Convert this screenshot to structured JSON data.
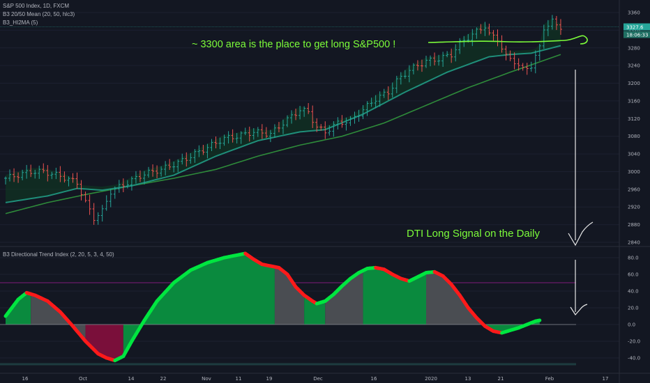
{
  "header": {
    "symbol_line": "S&P 500 Index, 1D, FXCM",
    "indicator_1": "B3 20/50 Mean (20, 50, hlc3)",
    "indicator_2": "B3_HI2MA (5)",
    "oscillator_title": "B3 Directional Trend Index (2, 20, 5, 3, 4, 50)"
  },
  "annotations": {
    "top_note": "~ 3300 area is the place to get long S&P500 !",
    "bottom_note": "DTI Long Signal on the Daily"
  },
  "price_labels": {
    "last_price": "3327.6",
    "countdown": "18:06:33"
  },
  "colors": {
    "background": "#131722",
    "bull_candle": "#26a69a",
    "bear_candle": "#ef5350",
    "mean_fast": "#1f8f7a",
    "mean_slow": "#2e8b3a",
    "annotation": "#7CFC3A",
    "dti_up": "#00e640",
    "dti_down": "#ff1a1a",
    "fill_green": "#0a8a3e",
    "fill_gray": "#4a4d52",
    "fill_maroon": "#7a0f3a",
    "upper_level": "#6a1b6a",
    "arrow": "#e8e8e8"
  },
  "chart_data": [
    {
      "type": "candlestick",
      "title": "S&P 500 Index, 1D, FXCM",
      "y_ticks": [
        3360,
        3320,
        3280,
        3240,
        3200,
        3160,
        3120,
        3080,
        3040,
        3000,
        2960,
        2920,
        2880,
        2840
      ],
      "x_tick_labels": [
        "16",
        "Oct",
        "14",
        "22",
        "Nov",
        "11",
        "19",
        "Dec",
        "16",
        "2020",
        "13",
        "21",
        "Feb",
        "17"
      ],
      "ylim": [
        2825,
        3375
      ],
      "close_path": [
        [
          0,
          2985
        ],
        [
          6,
          3000
        ],
        [
          9,
          3000
        ],
        [
          13,
          2990
        ],
        [
          17,
          2975
        ],
        [
          19,
          2930
        ],
        [
          21,
          2895
        ],
        [
          23,
          2910
        ],
        [
          25,
          2955
        ],
        [
          29,
          2975
        ],
        [
          33,
          2995
        ],
        [
          37,
          3005
        ],
        [
          41,
          3020
        ],
        [
          45,
          3040
        ],
        [
          49,
          3060
        ],
        [
          52,
          3075
        ],
        [
          55,
          3080
        ],
        [
          59,
          3090
        ],
        [
          63,
          3085
        ],
        [
          66,
          3110
        ],
        [
          68,
          3125
        ],
        [
          70,
          3140
        ],
        [
          72,
          3135
        ],
        [
          74,
          3100
        ],
        [
          76,
          3090
        ],
        [
          79,
          3110
        ],
        [
          82,
          3115
        ],
        [
          85,
          3140
        ],
        [
          88,
          3165
        ],
        [
          91,
          3180
        ],
        [
          93,
          3205
        ],
        [
          96,
          3230
        ],
        [
          98,
          3240
        ],
        [
          100,
          3250
        ],
        [
          103,
          3255
        ],
        [
          106,
          3265
        ],
        [
          108,
          3290
        ],
        [
          111,
          3310
        ],
        [
          114,
          3330
        ],
        [
          115,
          3310
        ],
        [
          117,
          3300
        ],
        [
          119,
          3260
        ],
        [
          121,
          3250
        ],
        [
          123,
          3230
        ],
        [
          125,
          3240
        ],
        [
          127,
          3280
        ],
        [
          128,
          3325
        ],
        [
          130,
          3340
        ],
        [
          131,
          3330
        ],
        [
          132,
          3328
        ]
      ],
      "mean_fast": [
        [
          0,
          2930
        ],
        [
          10,
          2945
        ],
        [
          17,
          2962
        ],
        [
          23,
          2958
        ],
        [
          30,
          2968
        ],
        [
          40,
          2992
        ],
        [
          50,
          3035
        ],
        [
          60,
          3070
        ],
        [
          70,
          3090
        ],
        [
          76,
          3095
        ],
        [
          85,
          3130
        ],
        [
          95,
          3180
        ],
        [
          105,
          3225
        ],
        [
          115,
          3260
        ],
        [
          120,
          3265
        ],
        [
          125,
          3268
        ],
        [
          132,
          3285
        ]
      ],
      "mean_slow": [
        [
          0,
          2905
        ],
        [
          10,
          2930
        ],
        [
          20,
          2950
        ],
        [
          30,
          2968
        ],
        [
          40,
          2985
        ],
        [
          50,
          3005
        ],
        [
          60,
          3035
        ],
        [
          70,
          3060
        ],
        [
          80,
          3080
        ],
        [
          90,
          3110
        ],
        [
          100,
          3150
        ],
        [
          110,
          3190
        ],
        [
          120,
          3225
        ],
        [
          126,
          3245
        ],
        [
          132,
          3265
        ]
      ]
    },
    {
      "type": "area",
      "title": "B3 Directional Trend Index (2, 20, 5, 3, 4, 50)",
      "y_ticks": [
        80.0,
        60.0,
        40.0,
        20.0,
        0.0,
        -20.0,
        -40.0
      ],
      "ylim": [
        -50,
        90
      ],
      "upper_level": 50,
      "dti": [
        [
          0,
          10
        ],
        [
          3,
          30
        ],
        [
          5,
          38
        ],
        [
          7,
          35
        ],
        [
          10,
          28
        ],
        [
          13,
          15
        ],
        [
          16,
          -2
        ],
        [
          19,
          -20
        ],
        [
          22,
          -35
        ],
        [
          24,
          -40
        ],
        [
          26,
          -43
        ],
        [
          28,
          -38
        ],
        [
          30,
          -20
        ],
        [
          33,
          5
        ],
        [
          36,
          28
        ],
        [
          40,
          50
        ],
        [
          44,
          65
        ],
        [
          48,
          74
        ],
        [
          52,
          80
        ],
        [
          55,
          83
        ],
        [
          57,
          85
        ],
        [
          59,
          78
        ],
        [
          61,
          72
        ],
        [
          63,
          70
        ],
        [
          65,
          68
        ],
        [
          67,
          60
        ],
        [
          69,
          45
        ],
        [
          71,
          35
        ],
        [
          73,
          28
        ],
        [
          74,
          25
        ],
        [
          76,
          28
        ],
        [
          78,
          36
        ],
        [
          80,
          46
        ],
        [
          82,
          55
        ],
        [
          84,
          62
        ],
        [
          86,
          67
        ],
        [
          88,
          68
        ],
        [
          90,
          66
        ],
        [
          92,
          60
        ],
        [
          94,
          55
        ],
        [
          96,
          52
        ],
        [
          98,
          57
        ],
        [
          100,
          62
        ],
        [
          102,
          63
        ],
        [
          104,
          58
        ],
        [
          106,
          48
        ],
        [
          108,
          35
        ],
        [
          110,
          20
        ],
        [
          112,
          8
        ],
        [
          114,
          -2
        ],
        [
          116,
          -8
        ],
        [
          118,
          -10
        ],
        [
          120,
          -7
        ],
        [
          122,
          -4
        ],
        [
          124,
          0
        ],
        [
          126,
          4
        ],
        [
          127,
          5
        ]
      ]
    }
  ]
}
